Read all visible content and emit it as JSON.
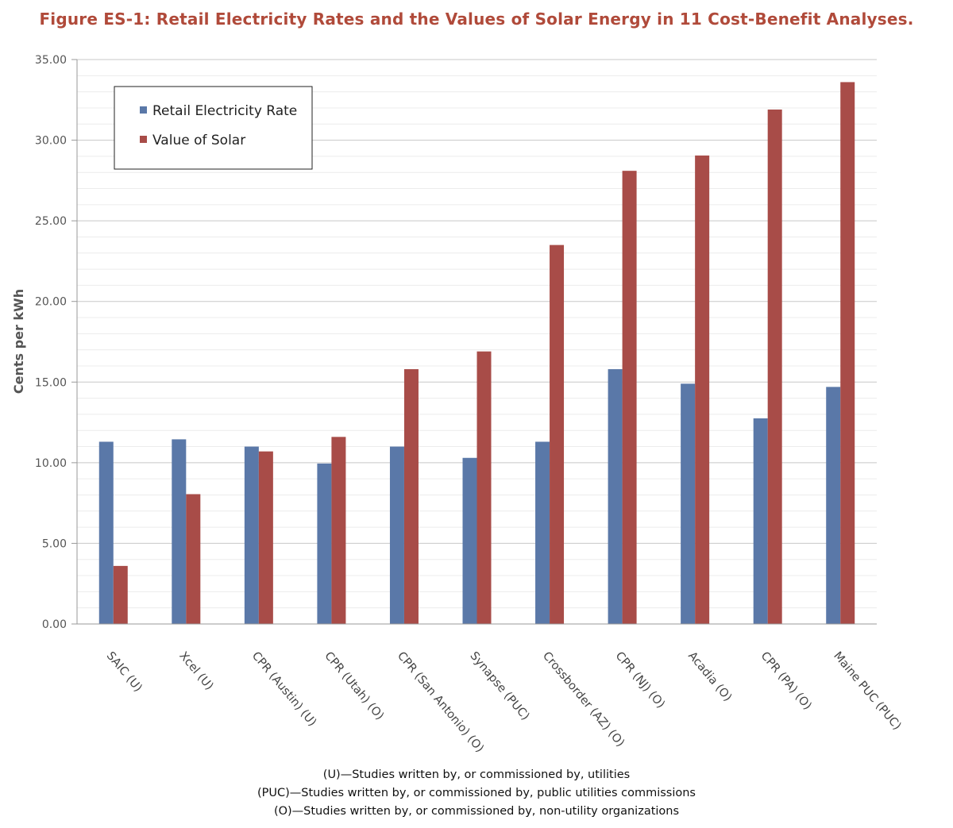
{
  "chart_data": {
    "type": "bar",
    "title": "Figure ES-1: Retail Electricity Rates and the Values of Solar Energy in 11 Cost-Benefit Analyses.",
    "xlabel": "",
    "ylabel": "Cents per kWh",
    "ylim": [
      0,
      35
    ],
    "yticks": [
      "0.00",
      "5.00",
      "10.00",
      "15.00",
      "20.00",
      "25.00",
      "30.00",
      "35.00"
    ],
    "grid": true,
    "legend_position": "top-left",
    "categories": [
      "SAIC (U)",
      "Xcel (U)",
      "CPR (Austin) (U)",
      "CPR (Utah) (O)",
      "CPR (San Antonio) (O)",
      "Synapse (PUC)",
      "Crossborder (AZ) (O)",
      "CPR (NJ) (O)",
      "Acadia (O)",
      "CPR (PA) (O)",
      "Maine PUC (PUC)"
    ],
    "series": [
      {
        "name": "Retail Electricity Rate",
        "color": "#5a78a8",
        "values": [
          11.3,
          11.45,
          11.0,
          9.95,
          11.0,
          10.3,
          11.3,
          15.8,
          14.9,
          12.75,
          14.7
        ]
      },
      {
        "name": "Value of Solar",
        "color": "#a84c48",
        "values": [
          3.6,
          8.05,
          10.7,
          11.6,
          15.8,
          16.9,
          23.5,
          28.1,
          29.05,
          31.9,
          33.6
        ]
      }
    ],
    "footnotes": [
      "(U)—Studies written by, or commissioned by, utilities",
      "(PUC)—Studies written by, or commissioned by, public utilities commissions",
      "(O)—Studies written by, or commissioned by, non-utility organizations"
    ]
  }
}
